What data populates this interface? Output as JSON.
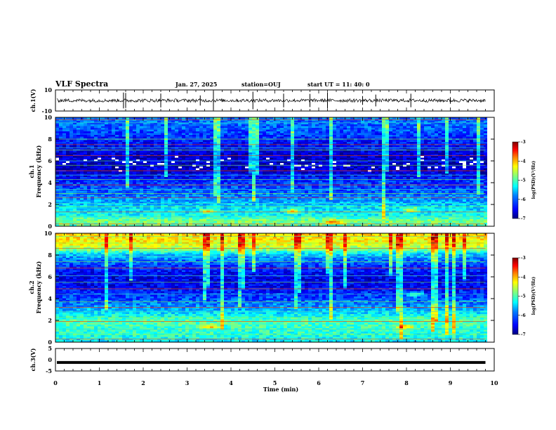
{
  "header": {
    "title": "VLF Spectra",
    "date": "Jan. 27, 2025",
    "station": "station=OUJ",
    "start": "start UT =  11: 40: 0"
  },
  "colors": {
    "colormap": [
      "#00007f",
      "#0000ff",
      "#007fff",
      "#00ffff",
      "#7fff7f",
      "#ffff00",
      "#ff7f00",
      "#ff0000",
      "#7f0000"
    ],
    "trace": "#000000"
  },
  "chart_data": [
    {
      "type": "line",
      "name_panel": "ch1-waveform",
      "ylabel": "ch.1(V)",
      "ylim": [
        -10,
        10
      ],
      "yticks": [
        "10",
        "-10"
      ],
      "xlim": [
        0,
        10
      ],
      "baseline": 0,
      "spike_times_min": [
        1.55,
        1.6,
        2.4,
        3.3,
        3.6,
        4.5,
        5.2,
        5.8,
        6.2,
        7.0,
        7.3,
        8.1,
        9.0
      ]
    },
    {
      "type": "heatmap",
      "name_panel": "ch1-spectrogram",
      "ylabel_line1": "ch.1",
      "ylabel_line2": "Frequency (kHz)",
      "xlim": [
        0,
        10
      ],
      "ylim": [
        0,
        10
      ],
      "yticks": [
        "0",
        "2",
        "4",
        "6",
        "8",
        "10"
      ],
      "data_end_min": 9.8,
      "colorbar": {
        "label": "log(PSD)(V²/Hz)",
        "range": [
          -7,
          -3
        ],
        "ticks": [
          "-3",
          "-4",
          "-5",
          "-6",
          "-7"
        ]
      },
      "profile_khz": [
        0,
        0.5,
        1,
        2,
        3,
        4,
        5,
        6,
        7,
        8,
        9,
        10
      ],
      "profile_level": [
        0.45,
        0.5,
        0.38,
        0.32,
        0.22,
        0.18,
        0.08,
        0.06,
        0.1,
        0.16,
        0.22,
        0.24
      ],
      "line_freqs_khz": [
        0.2,
        0.5,
        0.9,
        1.3,
        1.8,
        2.1,
        2.6,
        3.0,
        3.4,
        3.8,
        4.3,
        4.7,
        5.1,
        5.6,
        6.0,
        6.5,
        7.0,
        7.2,
        7.5,
        8.0,
        9.5,
        9.8
      ],
      "events": [
        {
          "t_min": 3.5,
          "f_khz": 1.4
        },
        {
          "t_min": 5.4,
          "f_khz": 1.4
        },
        {
          "t_min": 6.35,
          "f_khz": 0.4
        },
        {
          "t_min": 8.1,
          "f_khz": 1.5
        }
      ]
    },
    {
      "type": "heatmap",
      "name_panel": "ch2-spectrogram",
      "ylabel_line1": "ch.2",
      "ylabel_line2": "Frequency (kHz)",
      "xlim": [
        0,
        10
      ],
      "ylim": [
        0,
        10
      ],
      "yticks": [
        "0",
        "2",
        "4",
        "6",
        "8",
        "10"
      ],
      "data_end_min": 9.8,
      "colorbar": {
        "label": "log(PSD)(V²/Hz)",
        "range": [
          -7,
          -3
        ],
        "ticks": [
          "-3",
          "-4",
          "-5",
          "-6",
          "-7"
        ]
      },
      "profile_khz": [
        0,
        0.5,
        1,
        2,
        3,
        4,
        5,
        6,
        7,
        8,
        8.5,
        9,
        10
      ],
      "profile_level": [
        0.35,
        0.4,
        0.42,
        0.45,
        0.3,
        0.2,
        0.12,
        0.1,
        0.18,
        0.3,
        0.5,
        0.62,
        0.66
      ],
      "line_freqs_khz": [
        0.3,
        0.7,
        1.2,
        1.9,
        2.3,
        2.8,
        3.2,
        3.7,
        4.4,
        4.9,
        5.5,
        6.1,
        6.8,
        7.4,
        7.9,
        8.6,
        9.1,
        9.7
      ],
      "events": [
        {
          "t_min": 3.5,
          "f_khz": 1.4
        },
        {
          "t_min": 8.2,
          "f_khz": 4.4
        },
        {
          "t_min": 8.0,
          "f_khz": 1.4
        }
      ]
    },
    {
      "type": "line",
      "name_panel": "ch3-waveform",
      "ylabel": "ch.3(V)",
      "ylim": [
        -5,
        5
      ],
      "yticks": [
        "5",
        "0",
        "-5"
      ],
      "xlim": [
        0,
        10
      ],
      "baseline": -1.2
    }
  ],
  "xaxis": {
    "label": "Time (min)",
    "ticks": [
      "0",
      "1",
      "2",
      "3",
      "4",
      "5",
      "6",
      "7",
      "8",
      "9",
      "10"
    ]
  }
}
